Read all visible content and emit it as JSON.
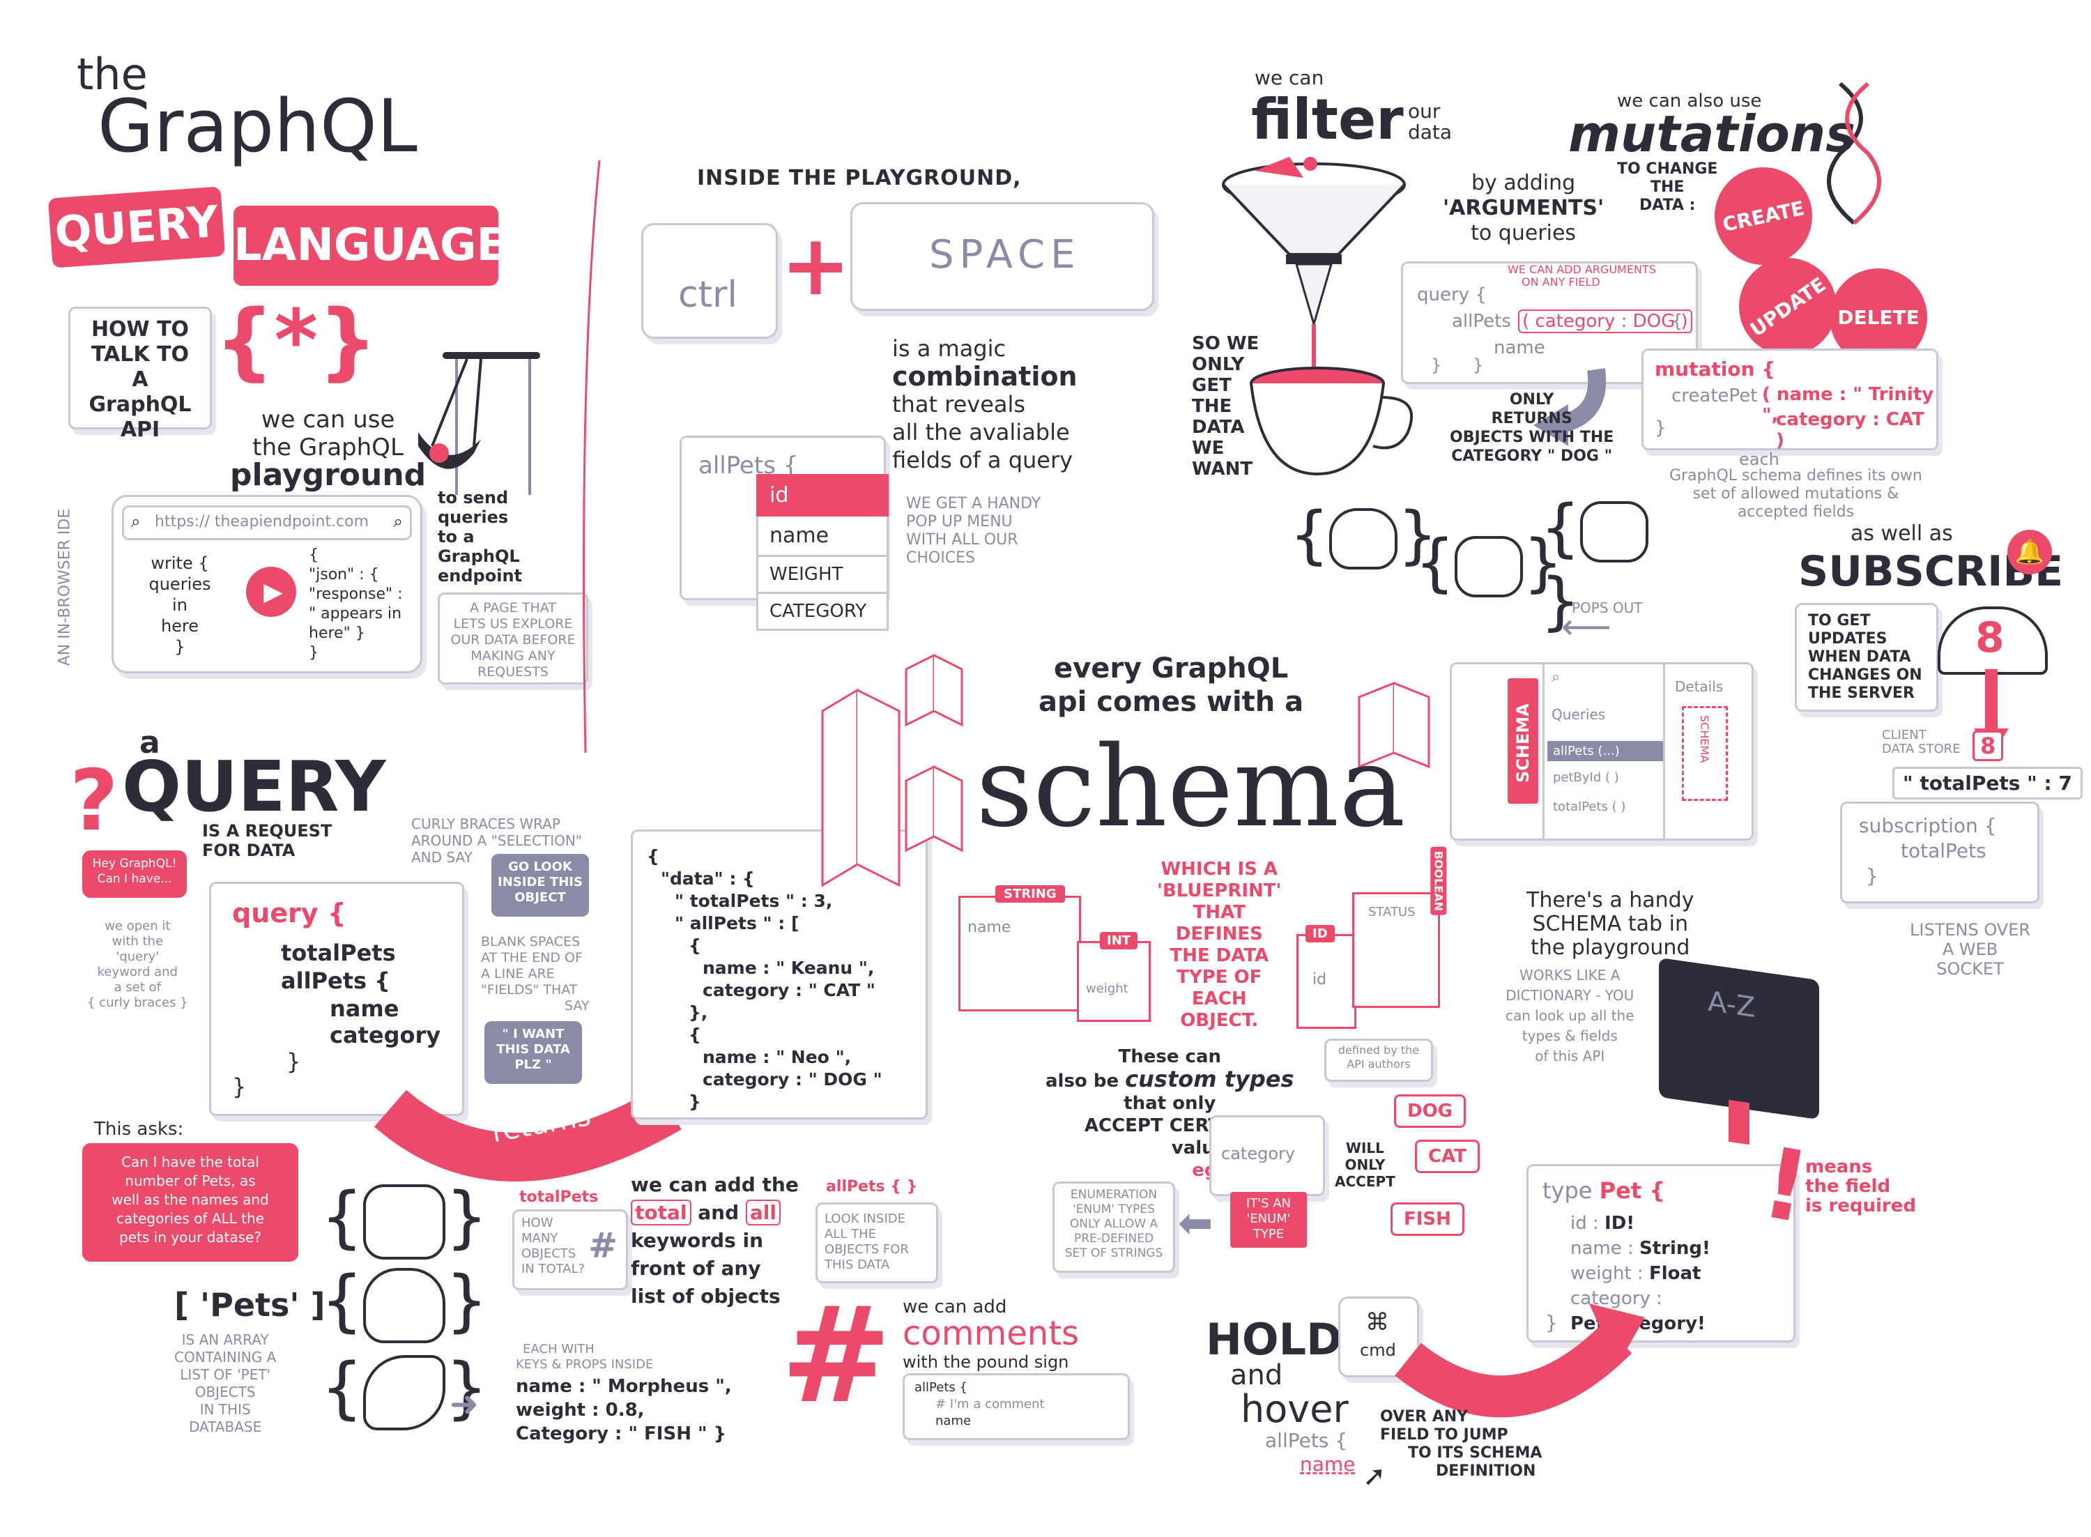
{
  "title": {
    "the": "the",
    "graphql": "GraphQL",
    "query": "QUERY",
    "language": "LANGUAGE",
    "how_to": [
      "HOW TO",
      "TALK TO A",
      "GraphQL",
      "API"
    ],
    "brace_icon": "{*}"
  },
  "playground": {
    "heading": [
      "we can use",
      "the GraphQL",
      "playground"
    ],
    "url": "https:// theapiendpoint.com",
    "left_code": [
      "write {",
      "queries",
      "in",
      "here",
      "}"
    ],
    "right_code": [
      "{",
      "\"json\" : {",
      "\"response\" :",
      "\" appears in",
      "here\" }",
      "}"
    ],
    "side_label": "an in-browser IDE",
    "send_note": [
      "to send",
      "queries",
      "to a",
      "GraphQL",
      "endpoint"
    ],
    "page_note": [
      "a page that",
      "lets us explore",
      "our data before",
      "making any",
      "requests"
    ]
  },
  "ctrl_space": {
    "heading": "INSIDE the PLAYGROUND,",
    "ctrl": "ctrl",
    "space": "SPACE",
    "magic": [
      "is a magic",
      "combination",
      "that reveals",
      "all the avaliable",
      "fields of a query"
    ],
    "menu_root": "allPets {",
    "menu_items": [
      "id",
      "name",
      "weight",
      "category"
    ],
    "menu_note": [
      "we get a handy",
      "pop up menu",
      "with all our",
      "choices"
    ]
  },
  "filter": {
    "we_can": "we can",
    "filter": "filter",
    "our_data": [
      "our",
      "data"
    ],
    "by_adding": [
      "by adding",
      "'ARGUMENTS'",
      "to queries"
    ],
    "arg_note": [
      "we can add arguments",
      "on any field"
    ],
    "code": [
      "query {",
      "allPets",
      "( category : DOG )",
      "{",
      "name",
      "}",
      "}"
    ],
    "so_we": [
      "so we",
      "only",
      "get",
      "the",
      "data",
      "we",
      "want"
    ],
    "only_returns": [
      "ONLY",
      "RETURNS",
      "objects with the",
      "category \" DOG \""
    ]
  },
  "mutations": {
    "also": "we can also use",
    "title": "mutations",
    "to_change": [
      "TO CHANGE",
      "THE",
      "DATA :"
    ],
    "create": "CREATE",
    "update": "UPDATE",
    "delete": "DELETE",
    "code": [
      "mutation {",
      "createPet",
      "( name : \" Trinity \",",
      "category : CAT )",
      "}"
    ],
    "each": "each",
    "note": [
      "GraphQL schema defines its own",
      "set of allowed mutations &",
      "accepted fields"
    ]
  },
  "subscribe": {
    "as_well": "as well as",
    "title": "SUBSCRIBE",
    "note": [
      "TO GET",
      "UPDATES",
      "WHEN DATA",
      "CHANGES ON",
      "THE SERVER"
    ],
    "count_big": "8",
    "count_small": "8",
    "client_store": [
      "CLIENT",
      "DATA STORE"
    ],
    "total_line": "\" totalPets \" : 7",
    "code": [
      "subscription {",
      "totalPets",
      "}"
    ],
    "listens": [
      "LISTENS OVER",
      "A WEB",
      "SOCKET"
    ]
  },
  "query": {
    "a": "a",
    "title": "QUERY",
    "is_request": [
      "is a request",
      "for data"
    ],
    "hey": [
      "Hey GraphQL!",
      "Can I have..."
    ],
    "we_open": [
      "we open it",
      "with the",
      "'query'",
      "keyword and",
      "a set of",
      "{ curly braces }"
    ],
    "code": [
      "query {",
      "totalPets",
      "allPets {",
      "name",
      "category",
      "}",
      "}"
    ],
    "curly_note": [
      "CURLY BRACES WRAP",
      "AROUND A \"SELECTION\"",
      "AND SAY"
    ],
    "go_look": [
      "GO LOOK",
      "INSIDE THIS",
      "OBJECT"
    ],
    "blank_note": [
      "BLANK SPACES",
      "AT THE END OF",
      "A LINE ARE",
      "\"Fields\" THAT",
      "SAY"
    ],
    "i_want": [
      "\" I WANT",
      "THIS DATA",
      "PLZ \""
    ],
    "returns": "returns",
    "this_asks": "This asks:",
    "asks_bubble": [
      "Can I have the total",
      "number of Pets, as",
      "well as the names and",
      "categories of ALL the",
      "pets in your datase?"
    ]
  },
  "response": {
    "code": [
      "{",
      "\"data\" : {",
      "\" totalPets \" : 3,",
      "\" allPets \" : [",
      "{",
      "name : \" Keanu \",",
      "category : \" CAT \"",
      "},",
      "{",
      "name : \" Neo \",",
      "category : \" DOG \"",
      "}"
    ]
  },
  "pets": {
    "label": "[ 'Pets' ]",
    "note": [
      "IS AN ARRAY",
      "CONTAINING A",
      "LIST OF 'PET'",
      "OBJECTS",
      "IN THIS",
      "DATABASE"
    ],
    "each_with": [
      "each with",
      "keys & props inside"
    ],
    "obj": [
      "name : \" Morpheus \",",
      "weight : 0.8,",
      "Category : \" FISH \" }"
    ]
  },
  "total_all": {
    "total_label": "totalPets",
    "how_many": [
      "HOW",
      "MANY",
      "OBJECTS",
      "IN TOTAL?"
    ],
    "we_can": [
      "we can add the",
      "total",
      "and",
      "all",
      "keywords in",
      "front of any",
      "list of objects"
    ],
    "all_label": "allPets { }",
    "look_inside": [
      "LOOK INSIDE",
      "ALL THE",
      "OBJECTS FOR",
      "THIS DATA"
    ]
  },
  "comments": {
    "we_can": "we can add",
    "title": "comments",
    "with": "with the pound sign",
    "code": [
      "allPets {",
      "# I'm a comment",
      "name"
    ]
  },
  "schema": {
    "every": [
      "every GraphQL",
      "api comes with a"
    ],
    "title": "schema",
    "which_is": [
      "WHICH IS A",
      "'BLUEPRINT'",
      "THAT",
      "DEFINES",
      "THE DATA",
      "TYPE OF",
      "EACH",
      "OBJECT."
    ],
    "boxes": [
      "STRING",
      "name",
      "INT",
      "weight",
      "ID",
      "id",
      "STATUS",
      "BOOLEAN"
    ],
    "custom": [
      "These can",
      "also be",
      "custom types",
      "that only",
      "ACCEPT CERTAIN",
      "values",
      "eg."
    ],
    "defined_by": [
      "defined by the",
      "API authors"
    ],
    "category_box": "category",
    "will_only": [
      "WILL",
      "ONLY",
      "ACCEPT"
    ],
    "enum_values": [
      "DOG",
      "CAT",
      "FISH"
    ],
    "enum_tag": [
      "IT'S AN",
      "'ENUM'",
      "TYPE"
    ],
    "enum_note": [
      "enumeration",
      "'enum' types",
      "only allow a",
      "pre-defined",
      "set of strings"
    ]
  },
  "schema_tab": {
    "pops_out": "POPS OUT",
    "tab": "SCHEMA",
    "details": "Details",
    "queries": "Queries",
    "items": [
      "allPets (...)",
      "petById ( )",
      "totalPets ( )"
    ],
    "handy": [
      "There's a handy",
      "SCHEMA tab in",
      "the playground"
    ],
    "works_like": [
      "WORKS LIKE A",
      "DICTIONARY - you",
      "can look up all the",
      "types & fields",
      "of this API"
    ],
    "book": "A-Z"
  },
  "type_pet": {
    "code_head": "type",
    "name": "Pet {",
    "fields": [
      [
        "id :",
        "ID!"
      ],
      [
        "name :",
        "String!"
      ],
      [
        "weight :",
        "Float"
      ],
      [
        "category :",
        "PetCategory!"
      ]
    ],
    "close": "}",
    "means": [
      "means",
      "the field",
      "is required"
    ]
  },
  "hold": {
    "hold": "HOLD",
    "and": "and",
    "hover": "hover",
    "cmd_symbol": "⌘",
    "cmd": "cmd",
    "over_any": [
      "OVER ANY",
      "FIELD TO JUMP",
      "TO ITS SCHEMA",
      "DEFINITION"
    ],
    "code": [
      "allPets {",
      "name"
    ]
  },
  "colors": {
    "accent": "#ec4a6b",
    "ink": "#2d2d3a",
    "muted": "#8a8ba6"
  }
}
